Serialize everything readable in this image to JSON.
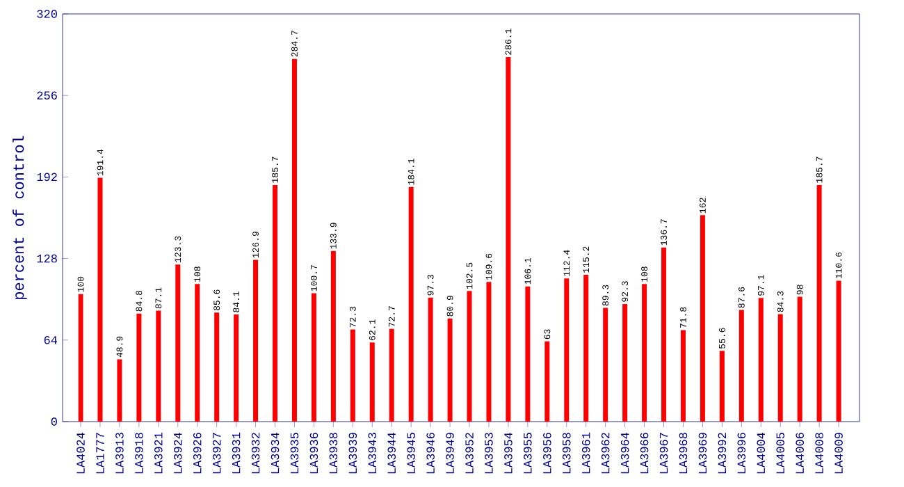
{
  "chart_data": {
    "type": "bar",
    "ylabel": "percent of control",
    "categories": [
      "LA4024",
      "LA1777",
      "LA3913",
      "LA3918",
      "LA3921",
      "LA3924",
      "LA3926",
      "LA3927",
      "LA3931",
      "LA3932",
      "LA3934",
      "LA3935",
      "LA3936",
      "LA3938",
      "LA3939",
      "LA3943",
      "LA3944",
      "LA3945",
      "LA3946",
      "LA3949",
      "LA3952",
      "LA3953",
      "LA3954",
      "LA3955",
      "LA3956",
      "LA3958",
      "LA3961",
      "LA3962",
      "LA3964",
      "LA3966",
      "LA3967",
      "LA3968",
      "LA3969",
      "LA3992",
      "LA3996",
      "LA4004",
      "LA4005",
      "LA4006",
      "LA4008",
      "LA4009"
    ],
    "values": [
      100,
      191.4,
      48.9,
      84.8,
      87.1,
      123.3,
      108,
      85.6,
      84.1,
      126.9,
      185.7,
      284.7,
      100.7,
      133.9,
      72.3,
      62.1,
      72.7,
      184.1,
      97.3,
      80.9,
      102.5,
      109.6,
      286.1,
      106.1,
      63,
      112.4,
      115.2,
      89.3,
      92.3,
      108,
      136.7,
      71.8,
      162,
      55.6,
      87.6,
      97.1,
      84.3,
      98,
      185.7,
      110.6
    ],
    "color": "#ff0000",
    "ylim": [
      0,
      320
    ],
    "yticks": [
      0,
      64,
      128,
      192,
      256,
      320
    ],
    "data_labels": true,
    "grid": false
  }
}
